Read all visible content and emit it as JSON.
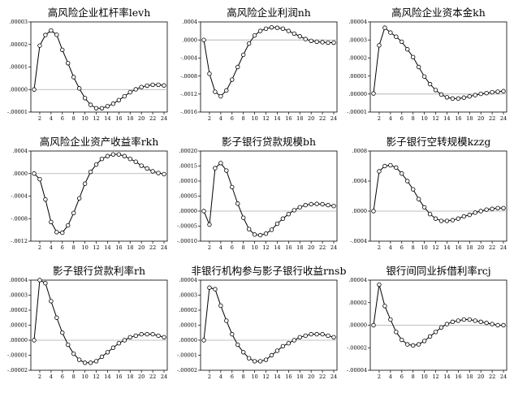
{
  "chart_data": [
    {
      "type": "line",
      "title": "高风险企业杠杆率levh",
      "x": [
        1,
        2,
        3,
        4,
        5,
        6,
        7,
        8,
        9,
        10,
        11,
        12,
        13,
        14,
        15,
        16,
        17,
        18,
        19,
        20,
        21,
        22,
        23,
        24
      ],
      "values": [
        0,
        1.95e-05,
        2.42e-05,
        2.62e-05,
        2.43e-05,
        1.76e-05,
        1.17e-05,
        5.5e-06,
        5e-07,
        -3.8e-06,
        -6.8e-06,
        -8.3e-06,
        -8.3e-06,
        -7.4e-06,
        -6.3e-06,
        -4.7e-06,
        -3e-06,
        -1.2e-06,
        1e-07,
        1.1e-06,
        1.7e-06,
        2.1e-06,
        2.1e-06,
        1.8e-06
      ],
      "ylim": [
        -1e-05,
        3e-05
      ],
      "yticks": [
        -1e-05,
        0.0,
        1e-05,
        2e-05,
        3e-05
      ],
      "ytick_labels": [
        "-.00001",
        ".00000",
        ".00001",
        ".00002",
        ".00003"
      ],
      "xticks": [
        2,
        4,
        6,
        8,
        10,
        12,
        14,
        16,
        18,
        20,
        22,
        24
      ]
    },
    {
      "type": "line",
      "title": "高风险企业利润nh",
      "x": [
        1,
        2,
        3,
        4,
        5,
        6,
        7,
        8,
        9,
        10,
        11,
        12,
        13,
        14,
        15,
        16,
        17,
        18,
        19,
        20,
        21,
        22,
        23,
        24
      ],
      "values": [
        0.0,
        -0.00075,
        -0.00115,
        -0.00125,
        -0.00112,
        -0.00088,
        -0.0006,
        -0.00033,
        -8e-05,
        0.0001,
        0.0002,
        0.00025,
        0.00028,
        0.00027,
        0.00025,
        0.0002,
        0.00014,
        8e-05,
        2e-05,
        -2e-05,
        -4e-05,
        -5e-05,
        -6e-05,
        -6e-05
      ],
      "ylim": [
        -0.0016,
        0.0004
      ],
      "yticks": [
        -0.0016,
        -0.0012,
        -0.0008,
        -0.0004,
        0.0,
        0.0004
      ],
      "ytick_labels": [
        "-.0016",
        "-.0012",
        "-.0008",
        "-.0004",
        ".0000",
        ".0004"
      ],
      "xticks": [
        2,
        4,
        6,
        8,
        10,
        12,
        14,
        16,
        18,
        20,
        22,
        24
      ]
    },
    {
      "type": "line",
      "title": "高风险企业资本金kh",
      "x": [
        1,
        2,
        3,
        4,
        5,
        6,
        7,
        8,
        9,
        10,
        11,
        12,
        13,
        14,
        15,
        16,
        17,
        18,
        19,
        20,
        21,
        22,
        23,
        24
      ],
      "values": [
        3e-07,
        2.7e-05,
        3.68e-05,
        3.41e-05,
        3.18e-05,
        2.9e-05,
        2.48e-05,
        2.05e-05,
        1.5e-05,
        9.7e-06,
        5.5e-06,
        2.2e-06,
        -3e-07,
        -1.8e-06,
        -2.5e-06,
        -2.5e-06,
        -2e-06,
        -1.3e-06,
        -6e-07,
        1e-07,
        5e-07,
        1e-06,
        1.3e-06,
        1.6e-06
      ],
      "ylim": [
        -1e-05,
        4e-05
      ],
      "yticks": [
        -1e-05,
        0.0,
        1e-05,
        2e-05,
        3e-05,
        4e-05
      ],
      "ytick_labels": [
        "-.00001",
        ".00000",
        ".00001",
        ".00002",
        ".00003",
        ".00004"
      ],
      "xticks": [
        2,
        4,
        6,
        8,
        10,
        12,
        14,
        16,
        18,
        20,
        22,
        24
      ]
    },
    {
      "type": "line",
      "title": "高风险企业资产收益率rkh",
      "x": [
        1,
        2,
        3,
        4,
        5,
        6,
        7,
        8,
        9,
        10,
        11,
        12,
        13,
        14,
        15,
        16,
        17,
        18,
        19,
        20,
        21,
        22,
        23,
        24
      ],
      "values": [
        0.0,
        -0.0001,
        -0.00046,
        -0.00086,
        -0.00104,
        -0.00105,
        -0.00092,
        -0.0007,
        -0.00044,
        -0.00018,
        3e-05,
        0.00016,
        0.00026,
        0.00031,
        0.00034,
        0.00034,
        0.00031,
        0.00026,
        0.00021,
        0.00014,
        9e-05,
        4e-05,
        1e-05,
        -1e-05
      ],
      "ylim": [
        -0.0012,
        0.0004
      ],
      "yticks": [
        -0.0012,
        -0.0008,
        -0.0004,
        0.0,
        0.0004
      ],
      "ytick_labels": [
        "-.0012",
        "-.0008",
        "-.0004",
        ".0000",
        ".0004"
      ],
      "xticks": [
        2,
        4,
        6,
        8,
        10,
        12,
        14,
        16,
        18,
        20,
        22,
        24
      ]
    },
    {
      "type": "line",
      "title": "影子银行贷款规模bh",
      "x": [
        1,
        2,
        3,
        4,
        5,
        6,
        7,
        8,
        9,
        10,
        11,
        12,
        13,
        14,
        15,
        16,
        17,
        18,
        19,
        20,
        21,
        22,
        23,
        24
      ],
      "values": [
        0.0,
        -4.5e-05,
        0.000143,
        0.00016,
        0.000135,
        8e-05,
        2.5e-05,
        -2.2e-05,
        -6e-05,
        -7.8e-05,
        -8e-05,
        -7.5e-05,
        -6.2e-05,
        -4.2e-05,
        -2.5e-05,
        -1e-05,
        3e-06,
        1.3e-05,
        2e-05,
        2.3e-05,
        2.4e-05,
        2.3e-05,
        2e-05,
        1.7e-05
      ],
      "ylim": [
        -0.0001,
        0.0002
      ],
      "yticks": [
        -0.0001,
        -5e-05,
        0.0,
        5e-05,
        0.0001,
        0.00015,
        0.0002
      ],
      "ytick_labels": [
        "-.00010",
        "-.00005",
        ".00000",
        ".00005",
        ".00010",
        ".00015",
        ".00020"
      ],
      "xticks": [
        2,
        4,
        6,
        8,
        10,
        12,
        14,
        16,
        18,
        20,
        22,
        24
      ]
    },
    {
      "type": "line",
      "title": "影子银行空转规模kzzg",
      "x": [
        1,
        2,
        3,
        4,
        5,
        6,
        7,
        8,
        9,
        10,
        11,
        12,
        13,
        14,
        15,
        16,
        17,
        18,
        19,
        20,
        21,
        22,
        23,
        24
      ],
      "values": [
        0.0,
        0.00053,
        0.0006,
        0.00061,
        0.00058,
        0.0005,
        0.0004,
        0.00029,
        0.00016,
        5e-05,
        -4e-05,
        -0.0001,
        -0.00013,
        -0.00013,
        -0.00012,
        -0.0001,
        -7e-05,
        -5e-05,
        -2e-05,
        0.0,
        2e-05,
        3e-05,
        4e-05,
        4e-05
      ],
      "ylim": [
        -0.0004,
        0.0008
      ],
      "yticks": [
        -0.0004,
        0.0,
        0.0004,
        0.0008
      ],
      "ytick_labels": [
        "-.0004",
        ".0000",
        ".0004",
        ".0008"
      ],
      "xticks": [
        2,
        4,
        6,
        8,
        10,
        12,
        14,
        16,
        18,
        20,
        22,
        24
      ]
    },
    {
      "type": "line",
      "title": "影子银行贷款利率rh",
      "x": [
        1,
        2,
        3,
        4,
        5,
        6,
        7,
        8,
        9,
        10,
        11,
        12,
        13,
        14,
        15,
        16,
        17,
        18,
        19,
        20,
        21,
        22,
        23,
        24
      ],
      "values": [
        0.0,
        4e-05,
        3.8e-05,
        2.6e-05,
        1.5e-05,
        5e-06,
        -3e-06,
        -9e-06,
        -1.3e-05,
        -1.5e-05,
        -1.5e-05,
        -1.4e-05,
        -1.1e-05,
        -8e-06,
        -5e-06,
        -2e-06,
        0.0,
        2e-06,
        3e-06,
        4e-06,
        4e-06,
        4e-06,
        3e-06,
        2e-06
      ],
      "ylim": [
        -2e-05,
        4e-05
      ],
      "yticks": [
        -2e-05,
        -1e-05,
        0.0,
        1e-05,
        2e-05,
        3e-05,
        4e-05
      ],
      "ytick_labels": [
        "-.00002",
        "-.00001",
        ".00000",
        ".00001",
        ".00002",
        ".00003",
        ".00004"
      ],
      "xticks": [
        2,
        4,
        6,
        8,
        10,
        12,
        14,
        16,
        18,
        20,
        22,
        24
      ]
    },
    {
      "type": "line",
      "title": "非银行机构参与影子银行收益rnsb",
      "x": [
        1,
        2,
        3,
        4,
        5,
        6,
        7,
        8,
        9,
        10,
        11,
        12,
        13,
        14,
        15,
        16,
        17,
        18,
        19,
        20,
        21,
        22,
        23,
        24
      ],
      "values": [
        0.0,
        3.5e-05,
        3.4e-05,
        2.3e-05,
        1.3e-05,
        4e-06,
        -3e-06,
        -8e-06,
        -1.2e-05,
        -1.4e-05,
        -1.4e-05,
        -1.3e-05,
        -1e-05,
        -7e-06,
        -4e-06,
        -2e-06,
        0.0,
        2e-06,
        3e-06,
        4e-06,
        4e-06,
        4e-06,
        3e-06,
        2e-06
      ],
      "ylim": [
        -2e-05,
        4e-05
      ],
      "yticks": [
        -2e-05,
        -1e-05,
        0.0,
        1e-05,
        2e-05,
        3e-05,
        4e-05
      ],
      "ytick_labels": [
        "-.00002",
        "-.00001",
        ".00000",
        ".00001",
        ".00002",
        ".00003",
        ".00004"
      ],
      "xticks": [
        2,
        4,
        6,
        8,
        10,
        12,
        14,
        16,
        18,
        20,
        22,
        24
      ]
    },
    {
      "type": "line",
      "title": "银行间同业拆借利率rcj",
      "x": [
        1,
        2,
        3,
        4,
        5,
        6,
        7,
        8,
        9,
        10,
        11,
        12,
        13,
        14,
        15,
        16,
        17,
        18,
        19,
        20,
        21,
        22,
        23,
        24
      ],
      "values": [
        0.0,
        3.6e-05,
        1.7e-05,
        5e-06,
        -6e-06,
        -1.3e-05,
        -1.7e-05,
        -1.8e-05,
        -1.7e-05,
        -1.4e-05,
        -1e-05,
        -6e-06,
        -2e-06,
        1e-06,
        3e-06,
        4e-06,
        5e-06,
        5e-06,
        4e-06,
        3e-06,
        2e-06,
        1e-06,
        0.0,
        0.0
      ],
      "ylim": [
        -4e-05,
        4e-05
      ],
      "yticks": [
        -4e-05,
        -2e-05,
        0.0,
        2e-05,
        4e-05
      ],
      "ytick_labels": [
        "-.00004",
        "-.00002",
        ".00000",
        ".00002",
        ".00004"
      ],
      "xticks": [
        2,
        4,
        6,
        8,
        10,
        12,
        14,
        16,
        18,
        20,
        22,
        24
      ]
    }
  ]
}
